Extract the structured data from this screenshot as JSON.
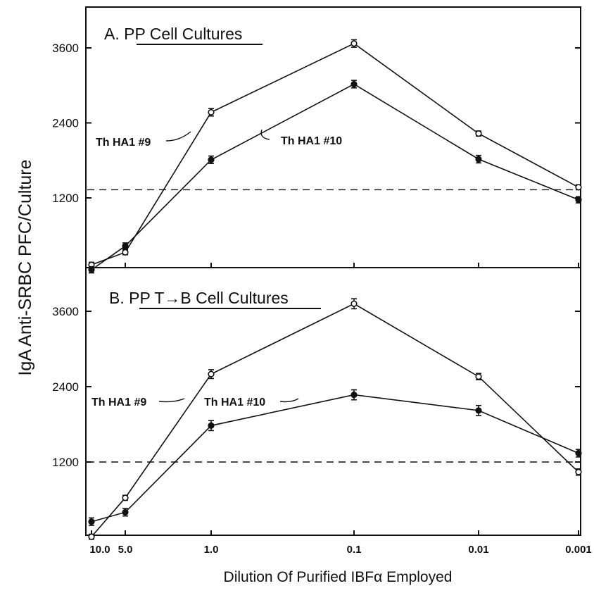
{
  "figure": {
    "ylabel": "IgA  Anti-SRBC  PFC/Culture",
    "xlabel": "Dilution Of Purified IBFα Employed",
    "x_tick_labels": [
      "10.0",
      "5.0",
      "1.0",
      "0.1",
      "0.01",
      "0.001"
    ]
  },
  "chart_data": [
    {
      "type": "line",
      "title": "A.  PP  Cell Cultures",
      "xscale": "log (reversed)",
      "x": [
        10.0,
        5.0,
        1.0,
        0.1,
        0.01,
        0.001
      ],
      "yticks": [
        1200,
        2400,
        3600
      ],
      "ylim": [
        0,
        4100
      ],
      "baseline": 1330,
      "series": [
        {
          "name": "Th HA1 #9",
          "marker": "open-circle",
          "values": [
            130,
            330,
            2570,
            3670,
            2230,
            1370
          ],
          "errors": [
            40,
            40,
            60,
            60,
            40,
            40
          ]
        },
        {
          "name": "Th HA1 #10",
          "marker": "filled-circle",
          "values": [
            50,
            430,
            1810,
            3020,
            1820,
            1170
          ],
          "errors": [
            50,
            50,
            60,
            60,
            60,
            50
          ]
        }
      ],
      "annotations": [
        {
          "text": "Th HA1 #9",
          "series": "Th HA1 #9"
        },
        {
          "text": "Th HA1 #10",
          "series": "Th HA1 #10"
        }
      ]
    },
    {
      "type": "line",
      "title": "B.  PP  T→B  Cell Cultures",
      "xscale": "log (reversed)",
      "x": [
        10.0,
        5.0,
        1.0,
        0.1,
        0.01,
        0.001
      ],
      "yticks": [
        1200,
        2400,
        3600
      ],
      "ylim": [
        0,
        4100
      ],
      "baseline": 1200,
      "series": [
        {
          "name": "Th HA1 #9",
          "marker": "open-circle",
          "values": [
            10,
            630,
            2600,
            3720,
            2560,
            1040
          ],
          "errors": [
            40,
            40,
            70,
            80,
            50,
            50
          ]
        },
        {
          "name": "Th HA1 #10",
          "marker": "filled-circle",
          "values": [
            250,
            400,
            1780,
            2270,
            2020,
            1340
          ],
          "errors": [
            60,
            60,
            80,
            80,
            80,
            60
          ]
        }
      ],
      "annotations": [
        {
          "text": "Th HA1 #9",
          "series": "Th HA1 #9"
        },
        {
          "text": "Th HA1 #10",
          "series": "Th HA1 #10"
        }
      ]
    }
  ]
}
